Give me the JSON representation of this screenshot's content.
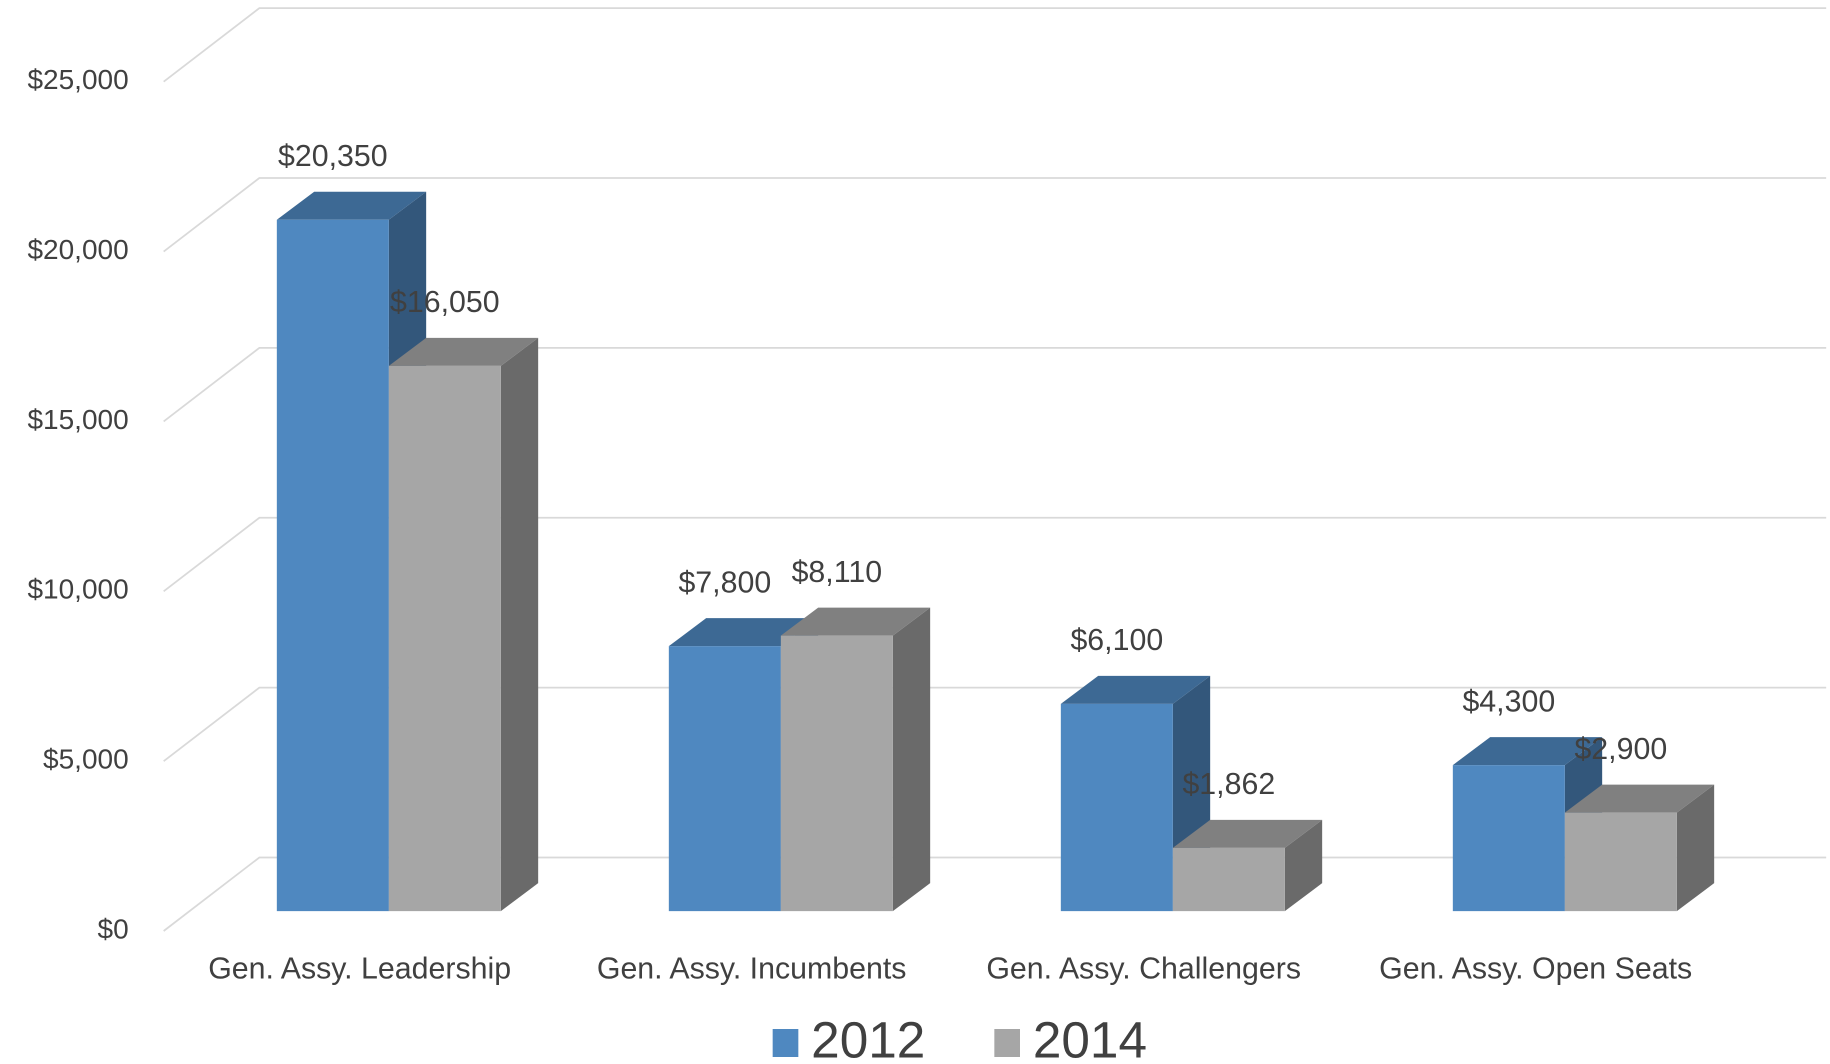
{
  "chart_data": {
    "type": "bar3d",
    "categories": [
      "Gen. Assy. Leadership",
      "Gen. Assy. Incumbents",
      "Gen. Assy. Challengers",
      "Gen. Assy. Open Seats"
    ],
    "series": [
      {
        "name": "2012",
        "color": "#4f88c0",
        "values": [
          20350,
          7800,
          6100,
          4300
        ],
        "value_labels": [
          "$20,350",
          "$7,800",
          "$6,100",
          "$4,300"
        ]
      },
      {
        "name": "2014",
        "color": "#a6a6a6",
        "values": [
          16050,
          8110,
          1862,
          2900
        ],
        "value_labels": [
          "$16,050",
          "$8,110",
          "$1,862",
          "$2,900"
        ]
      }
    ],
    "ylim": [
      0,
      25000
    ],
    "yticks": [
      {
        "value": 0,
        "label": "$0"
      },
      {
        "value": 5000,
        "label": "$5,000"
      },
      {
        "value": 10000,
        "label": "$10,000"
      },
      {
        "value": 15000,
        "label": "$15,000"
      },
      {
        "value": 20000,
        "label": "$20,000"
      },
      {
        "value": 25000,
        "label": "$25,000"
      }
    ],
    "grid": true,
    "legend": "bottom"
  }
}
